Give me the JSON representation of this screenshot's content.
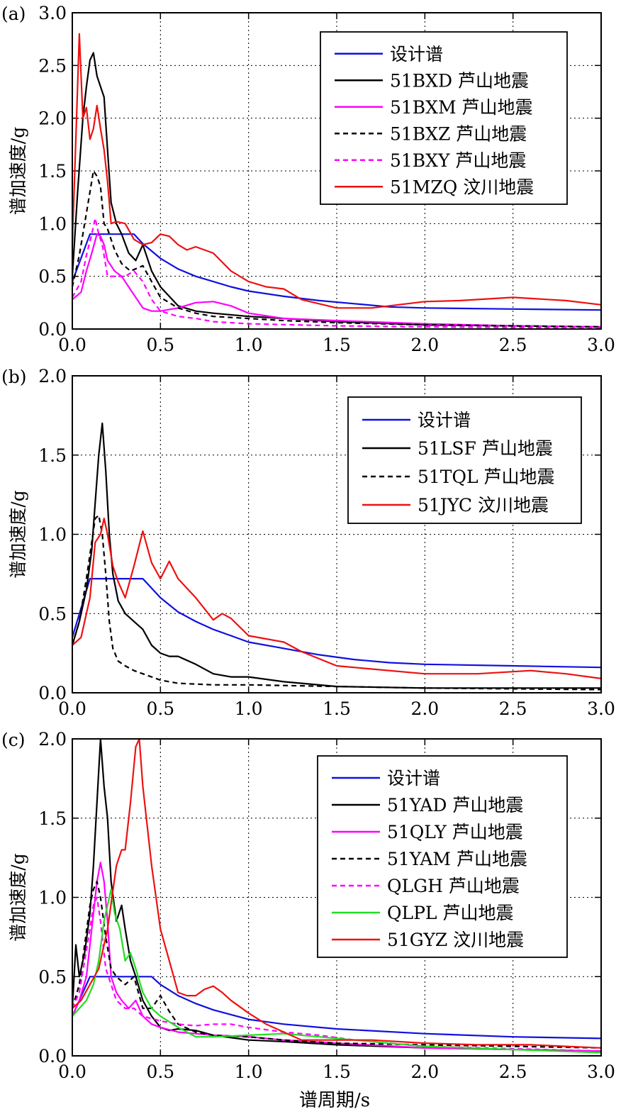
{
  "figure": {
    "xlabel": "谱周期/s"
  },
  "chart_data": [
    {
      "panel_label": "(a)",
      "type": "line",
      "title": "",
      "xlabel": "",
      "ylabel": "谱加速度/g",
      "xlim": [
        0,
        3.0
      ],
      "ylim": [
        0,
        3.0
      ],
      "xticks": [
        "0.0",
        "0.5",
        "1.0",
        "1.5",
        "2.0",
        "2.5",
        "3.0"
      ],
      "yticks": [
        "0.0",
        "0.5",
        "1.0",
        "1.5",
        "2.0",
        "2.5",
        "3.0"
      ],
      "grid": true,
      "legend_position": "top-right",
      "series": [
        {
          "name": "设计谱",
          "color": "#1010e0",
          "dash": "solid",
          "x": [
            0,
            0.1,
            0.35,
            0.4,
            0.5,
            0.6,
            0.7,
            0.8,
            0.9,
            1.0,
            1.2,
            1.4,
            1.6,
            1.8,
            2.0,
            2.5,
            3.0
          ],
          "y": [
            0.45,
            0.9,
            0.9,
            0.81,
            0.67,
            0.57,
            0.5,
            0.45,
            0.4,
            0.36,
            0.31,
            0.27,
            0.24,
            0.21,
            0.2,
            0.19,
            0.18
          ]
        },
        {
          "name": "51BXD 芦山地震",
          "color": "#000000",
          "dash": "solid",
          "x": [
            0,
            0.03,
            0.06,
            0.08,
            0.1,
            0.12,
            0.14,
            0.16,
            0.18,
            0.2,
            0.22,
            0.25,
            0.28,
            0.32,
            0.36,
            0.4,
            0.45,
            0.5,
            0.6,
            0.7,
            0.8,
            1.0,
            1.2,
            1.5,
            2.0,
            2.5,
            3.0
          ],
          "y": [
            0.5,
            1.3,
            2.0,
            2.3,
            2.55,
            2.62,
            2.4,
            2.3,
            2.2,
            1.7,
            1.2,
            1.0,
            0.9,
            0.72,
            0.65,
            0.8,
            0.55,
            0.4,
            0.22,
            0.17,
            0.15,
            0.12,
            0.1,
            0.07,
            0.04,
            0.03,
            0.02
          ]
        },
        {
          "name": "51BXM 芦山地震",
          "color": "#ff00ff",
          "dash": "solid",
          "x": [
            0,
            0.05,
            0.08,
            0.11,
            0.14,
            0.16,
            0.18,
            0.2,
            0.24,
            0.28,
            0.34,
            0.4,
            0.45,
            0.5,
            0.6,
            0.7,
            0.8,
            0.9,
            1.0,
            1.2,
            1.5,
            2.0,
            2.5,
            3.0
          ],
          "y": [
            0.28,
            0.35,
            0.55,
            0.72,
            0.9,
            0.88,
            0.8,
            0.65,
            0.55,
            0.5,
            0.35,
            0.2,
            0.17,
            0.17,
            0.2,
            0.25,
            0.26,
            0.22,
            0.15,
            0.1,
            0.08,
            0.05,
            0.03,
            0.02
          ]
        },
        {
          "name": "51BXZ 芦山地震",
          "color": "#000000",
          "dash": "dashed",
          "x": [
            0,
            0.04,
            0.07,
            0.1,
            0.12,
            0.14,
            0.16,
            0.18,
            0.2,
            0.24,
            0.28,
            0.33,
            0.4,
            0.45,
            0.5,
            0.55,
            0.6,
            0.7,
            0.8,
            1.0,
            1.2,
            1.5,
            2.0,
            3.0
          ],
          "y": [
            0.4,
            0.7,
            1.0,
            1.3,
            1.5,
            1.45,
            1.35,
            1.0,
            0.95,
            0.75,
            0.62,
            0.55,
            0.6,
            0.45,
            0.3,
            0.25,
            0.2,
            0.15,
            0.12,
            0.1,
            0.08,
            0.06,
            0.04,
            0.02
          ]
        },
        {
          "name": "51BXY 芦山地震",
          "color": "#ff00ff",
          "dash": "dashed",
          "x": [
            0,
            0.05,
            0.08,
            0.11,
            0.13,
            0.15,
            0.17,
            0.2,
            0.25,
            0.3,
            0.35,
            0.4,
            0.45,
            0.5,
            0.6,
            0.7,
            0.8,
            1.0,
            1.5,
            2.0,
            3.0
          ],
          "y": [
            0.3,
            0.45,
            0.7,
            0.9,
            1.05,
            0.9,
            0.8,
            0.5,
            0.5,
            0.5,
            0.55,
            0.45,
            0.28,
            0.17,
            0.12,
            0.1,
            0.07,
            0.05,
            0.03,
            0.02,
            0.01
          ]
        },
        {
          "name": "51MZQ 汶川地震",
          "color": "#ee1111",
          "dash": "solid",
          "x": [
            0,
            0.02,
            0.04,
            0.06,
            0.08,
            0.1,
            0.12,
            0.14,
            0.16,
            0.18,
            0.2,
            0.22,
            0.25,
            0.3,
            0.35,
            0.4,
            0.45,
            0.5,
            0.55,
            0.6,
            0.65,
            0.7,
            0.8,
            0.9,
            1.0,
            1.1,
            1.2,
            1.3,
            1.5,
            1.7,
            2.0,
            2.2,
            2.5,
            2.8,
            3.0
          ],
          "y": [
            0.8,
            1.8,
            2.8,
            2.0,
            2.1,
            1.8,
            1.9,
            2.12,
            1.9,
            1.7,
            1.4,
            1.0,
            1.02,
            1.0,
            0.85,
            0.8,
            0.82,
            0.9,
            0.88,
            0.8,
            0.75,
            0.78,
            0.72,
            0.55,
            0.45,
            0.4,
            0.38,
            0.28,
            0.2,
            0.2,
            0.26,
            0.27,
            0.3,
            0.27,
            0.23
          ]
        }
      ]
    },
    {
      "panel_label": "(b)",
      "type": "line",
      "title": "",
      "xlabel": "",
      "ylabel": "谱加速度/g",
      "xlim": [
        0,
        3.0
      ],
      "ylim": [
        0,
        2.0
      ],
      "xticks": [
        "0.0",
        "0.5",
        "1.0",
        "1.5",
        "2.0",
        "2.5",
        "3.0"
      ],
      "yticks": [
        "0.0",
        "0.5",
        "1.0",
        "1.5",
        "2.0"
      ],
      "grid": true,
      "legend_position": "top-right",
      "series": [
        {
          "name": "设计谱",
          "color": "#1010e0",
          "dash": "solid",
          "x": [
            0,
            0.1,
            0.4,
            0.5,
            0.6,
            0.7,
            0.8,
            0.9,
            1.0,
            1.2,
            1.4,
            1.6,
            1.8,
            2.0,
            2.5,
            3.0
          ],
          "y": [
            0.35,
            0.72,
            0.72,
            0.6,
            0.51,
            0.45,
            0.4,
            0.36,
            0.32,
            0.28,
            0.24,
            0.21,
            0.19,
            0.18,
            0.17,
            0.16
          ]
        },
        {
          "name": "51LSF 芦山地震",
          "color": "#000000",
          "dash": "solid",
          "x": [
            0,
            0.04,
            0.08,
            0.11,
            0.13,
            0.15,
            0.17,
            0.19,
            0.21,
            0.23,
            0.26,
            0.3,
            0.35,
            0.4,
            0.45,
            0.5,
            0.55,
            0.6,
            0.7,
            0.8,
            0.9,
            1.0,
            1.2,
            1.5,
            2.0,
            3.0
          ],
          "y": [
            0.3,
            0.45,
            0.65,
            0.9,
            1.2,
            1.5,
            1.7,
            1.4,
            1.0,
            0.75,
            0.58,
            0.5,
            0.45,
            0.4,
            0.3,
            0.25,
            0.23,
            0.23,
            0.18,
            0.12,
            0.1,
            0.1,
            0.07,
            0.04,
            0.03,
            0.03
          ]
        },
        {
          "name": "51TQL 芦山地震",
          "color": "#000000",
          "dash": "dashed",
          "x": [
            0,
            0.04,
            0.08,
            0.11,
            0.13,
            0.15,
            0.17,
            0.19,
            0.21,
            0.23,
            0.26,
            0.3,
            0.35,
            0.4,
            0.5,
            0.6,
            0.8,
            1.0,
            1.5,
            2.0,
            3.0
          ],
          "y": [
            0.3,
            0.45,
            0.72,
            0.95,
            1.1,
            1.12,
            1.0,
            0.75,
            0.45,
            0.28,
            0.2,
            0.17,
            0.14,
            0.12,
            0.08,
            0.06,
            0.05,
            0.05,
            0.04,
            0.03,
            0.02
          ]
        },
        {
          "name": "51JYC 汶川地震",
          "color": "#ee1111",
          "dash": "solid",
          "x": [
            0,
            0.05,
            0.1,
            0.13,
            0.16,
            0.18,
            0.2,
            0.23,
            0.26,
            0.3,
            0.35,
            0.4,
            0.45,
            0.5,
            0.55,
            0.6,
            0.7,
            0.8,
            0.85,
            0.9,
            1.0,
            1.1,
            1.2,
            1.3,
            1.5,
            1.7,
            2.0,
            2.3,
            2.6,
            2.8,
            3.0
          ],
          "y": [
            0.3,
            0.35,
            0.6,
            0.95,
            1.0,
            1.1,
            1.0,
            0.8,
            0.7,
            0.6,
            0.8,
            1.02,
            0.82,
            0.72,
            0.83,
            0.72,
            0.6,
            0.46,
            0.5,
            0.47,
            0.36,
            0.34,
            0.32,
            0.26,
            0.17,
            0.15,
            0.12,
            0.12,
            0.14,
            0.12,
            0.09
          ]
        }
      ]
    },
    {
      "panel_label": "(c)",
      "type": "line",
      "title": "",
      "xlabel": "谱周期/s",
      "ylabel": "谱加速度/g",
      "xlim": [
        0,
        3.0
      ],
      "ylim": [
        0,
        2.0
      ],
      "xticks": [
        "0.0",
        "0.5",
        "1.0",
        "1.5",
        "2.0",
        "2.5",
        "3.0"
      ],
      "yticks": [
        "0.0",
        "0.5",
        "1.0",
        "1.5",
        "2.0"
      ],
      "grid": true,
      "legend_position": "top-right",
      "series": [
        {
          "name": "设计谱",
          "color": "#1010e0",
          "dash": "solid",
          "x": [
            0,
            0.1,
            0.45,
            0.5,
            0.6,
            0.7,
            0.8,
            1.0,
            1.2,
            1.5,
            2.0,
            2.5,
            3.0
          ],
          "y": [
            0.25,
            0.5,
            0.5,
            0.45,
            0.38,
            0.33,
            0.29,
            0.23,
            0.2,
            0.17,
            0.14,
            0.12,
            0.11
          ]
        },
        {
          "name": "51YAD 芦山地震",
          "color": "#000000",
          "dash": "solid",
          "x": [
            0,
            0.02,
            0.04,
            0.07,
            0.1,
            0.12,
            0.14,
            0.16,
            0.18,
            0.2,
            0.22,
            0.25,
            0.28,
            0.3,
            0.33,
            0.36,
            0.4,
            0.45,
            0.5,
            0.55,
            0.6,
            0.7,
            0.8,
            1.0,
            1.2,
            1.5,
            2.0,
            3.0
          ],
          "y": [
            0.3,
            0.7,
            0.5,
            0.65,
            0.9,
            1.2,
            1.6,
            2.0,
            1.7,
            1.5,
            1.1,
            0.85,
            0.95,
            0.8,
            0.6,
            0.5,
            0.35,
            0.25,
            0.18,
            0.16,
            0.17,
            0.16,
            0.13,
            0.1,
            0.09,
            0.07,
            0.05,
            0.03
          ]
        },
        {
          "name": "51QLY 芦山地震",
          "color": "#ff00ff",
          "dash": "solid",
          "x": [
            0,
            0.04,
            0.08,
            0.11,
            0.14,
            0.16,
            0.18,
            0.2,
            0.22,
            0.25,
            0.28,
            0.32,
            0.36,
            0.4,
            0.45,
            0.5,
            0.6,
            0.7,
            0.8,
            1.0,
            1.2,
            1.5,
            2.0,
            3.0
          ],
          "y": [
            0.25,
            0.35,
            0.5,
            0.8,
            1.1,
            1.22,
            1.1,
            0.85,
            0.5,
            0.4,
            0.35,
            0.3,
            0.35,
            0.25,
            0.2,
            0.18,
            0.15,
            0.14,
            0.13,
            0.12,
            0.1,
            0.08,
            0.05,
            0.03
          ]
        },
        {
          "name": "51YAM 芦山地震",
          "color": "#000000",
          "dash": "dashed",
          "x": [
            0,
            0.04,
            0.07,
            0.1,
            0.12,
            0.14,
            0.16,
            0.19,
            0.22,
            0.25,
            0.3,
            0.35,
            0.4,
            0.45,
            0.5,
            0.55,
            0.6,
            0.7,
            0.8,
            1.0,
            1.2,
            1.5,
            2.0,
            2.5,
            3.0
          ],
          "y": [
            0.3,
            0.45,
            0.7,
            0.95,
            1.05,
            1.1,
            1.0,
            0.75,
            0.55,
            0.5,
            0.45,
            0.5,
            0.3,
            0.3,
            0.38,
            0.28,
            0.2,
            0.15,
            0.13,
            0.12,
            0.1,
            0.08,
            0.07,
            0.06,
            0.05
          ]
        },
        {
          "name": "QLGH 芦山地震",
          "color": "#ff00ff",
          "dash": "dashed",
          "x": [
            0,
            0.04,
            0.07,
            0.1,
            0.12,
            0.14,
            0.16,
            0.19,
            0.22,
            0.25,
            0.3,
            0.35,
            0.4,
            0.5,
            0.6,
            0.7,
            0.8,
            0.9,
            1.0,
            1.2,
            1.4,
            1.6,
            2.0,
            3.0
          ],
          "y": [
            0.3,
            0.4,
            0.6,
            0.8,
            0.95,
            1.0,
            0.85,
            0.55,
            0.45,
            0.35,
            0.3,
            0.3,
            0.25,
            0.22,
            0.2,
            0.19,
            0.2,
            0.2,
            0.18,
            0.15,
            0.13,
            0.1,
            0.06,
            0.03
          ]
        },
        {
          "name": "QLPL 芦山地震",
          "color": "#22dd22",
          "dash": "solid",
          "x": [
            0,
            0.04,
            0.08,
            0.12,
            0.15,
            0.18,
            0.2,
            0.22,
            0.24,
            0.27,
            0.3,
            0.33,
            0.36,
            0.4,
            0.45,
            0.5,
            0.6,
            0.7,
            0.8,
            1.0,
            1.2,
            1.4,
            1.6,
            2.0,
            2.5,
            3.0
          ],
          "y": [
            0.25,
            0.3,
            0.35,
            0.45,
            0.6,
            0.85,
            0.95,
            1.05,
            0.9,
            0.8,
            0.6,
            0.65,
            0.55,
            0.4,
            0.3,
            0.25,
            0.18,
            0.12,
            0.12,
            0.13,
            0.14,
            0.12,
            0.1,
            0.06,
            0.04,
            0.02
          ]
        },
        {
          "name": "51GYZ 汶川地震",
          "color": "#ee1111",
          "dash": "solid",
          "x": [
            0,
            0.05,
            0.1,
            0.15,
            0.2,
            0.25,
            0.28,
            0.3,
            0.33,
            0.36,
            0.38,
            0.4,
            0.45,
            0.5,
            0.55,
            0.6,
            0.65,
            0.7,
            0.75,
            0.8,
            0.85,
            0.9,
            1.0,
            1.1,
            1.2,
            1.3,
            1.5,
            1.7,
            2.0,
            2.3,
            2.6,
            2.8,
            3.0
          ],
          "y": [
            0.3,
            0.35,
            0.45,
            0.55,
            0.8,
            1.2,
            1.3,
            1.3,
            1.6,
            1.95,
            2.0,
            1.7,
            1.2,
            0.8,
            0.6,
            0.4,
            0.38,
            0.38,
            0.42,
            0.44,
            0.4,
            0.35,
            0.27,
            0.2,
            0.15,
            0.1,
            0.1,
            0.1,
            0.08,
            0.07,
            0.07,
            0.06,
            0.05
          ]
        }
      ]
    }
  ]
}
